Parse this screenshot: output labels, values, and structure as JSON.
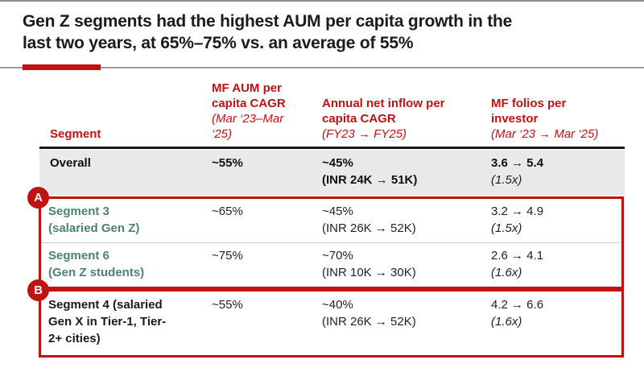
{
  "title": {
    "text": "Gen Z segments had the highest AUM per capita growth in the\nlast two years, at 65%–75% vs. an average of 55%"
  },
  "colors": {
    "accent_red": "#c11212",
    "segment_green": "#4e8170",
    "overall_row_bg": "#e9e9e9",
    "header_underline": "#1a1a1a"
  },
  "badges": {
    "a_label": "A",
    "b_label": "B"
  },
  "table": {
    "headers": [
      {
        "label": "Segment",
        "sub": ""
      },
      {
        "label": "MF AUM per\ncapita CAGR",
        "sub": "(Mar ‘23–Mar\n‘25)"
      },
      {
        "label": "Annual net inflow per\ncapita CAGR",
        "sub": "(FY23 → FY25)"
      },
      {
        "label": "MF folios per\ninvestor",
        "sub": "(Mar ‘23 → Mar ‘25)"
      }
    ],
    "rows": [
      {
        "name": "Overall",
        "aum": "~55%",
        "inflow": "~45%",
        "inflow_sub": "(INR 24K → 51K)",
        "folios": "3.6 → 5.4",
        "folios_sub": "(1.5x)"
      },
      {
        "name": "Segment 3\n(salaried Gen Z)",
        "aum": "~65%",
        "inflow": "~45%",
        "inflow_sub": "(INR 26K → 52K)",
        "folios": "3.2 → 4.9",
        "folios_sub": "(1.5x)"
      },
      {
        "name": "Segment 6\n(Gen Z students)",
        "aum": "~75%",
        "inflow": "~70%",
        "inflow_sub": "(INR 10K → 30K)",
        "folios": "2.6 → 4.1",
        "folios_sub": "(1.6x)"
      },
      {
        "name": "Segment 4 (salaried\nGen X in Tier-1, Tier-\n2+ cities)",
        "aum": "~55%",
        "inflow": "~40%",
        "inflow_sub": "(INR 26K → 52K)",
        "folios": "4.2 → 6.6",
        "folios_sub": "(1.6x)"
      }
    ]
  }
}
